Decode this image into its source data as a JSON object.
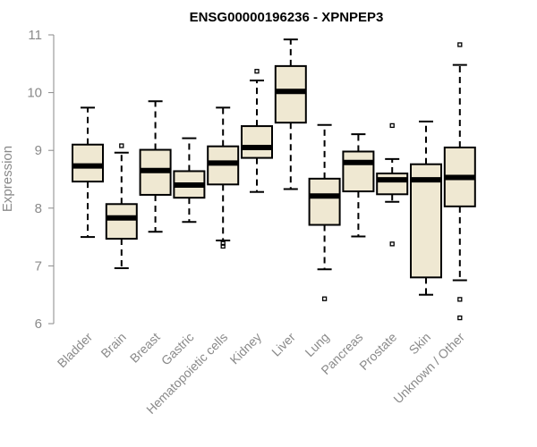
{
  "chart_data": {
    "type": "boxplot",
    "title": "ENSG00000196236 - XPNPEP3",
    "xlabel": "",
    "ylabel": "Expression",
    "ylim": [
      6,
      11
    ],
    "yticks": [
      6,
      7,
      8,
      9,
      10,
      11
    ],
    "box_fill": "#efe8d2",
    "categories": [
      "Bladder",
      "Brain",
      "Breast",
      "Gastric",
      "Hematopoietic cells",
      "Kidney",
      "Liver",
      "Lung",
      "Pancreas",
      "Prostate",
      "Skin",
      "Unknown / Other"
    ],
    "boxes": [
      {
        "whisker_low": 7.5,
        "q1": 8.46,
        "median": 8.73,
        "q3": 9.1,
        "whisker_high": 9.74,
        "outliers": []
      },
      {
        "whisker_low": 6.96,
        "q1": 7.47,
        "median": 7.83,
        "q3": 8.07,
        "whisker_high": 8.96,
        "outliers": [
          9.08
        ]
      },
      {
        "whisker_low": 7.59,
        "q1": 8.23,
        "median": 8.65,
        "q3": 9.01,
        "whisker_high": 9.85,
        "outliers": []
      },
      {
        "whisker_low": 7.76,
        "q1": 8.18,
        "median": 8.4,
        "q3": 8.64,
        "whisker_high": 9.21,
        "outliers": []
      },
      {
        "whisker_low": 7.44,
        "q1": 8.41,
        "median": 8.78,
        "q3": 9.07,
        "whisker_high": 9.74,
        "outliers": [
          7.34,
          7.39
        ]
      },
      {
        "whisker_low": 8.28,
        "q1": 8.87,
        "median": 9.05,
        "q3": 9.42,
        "whisker_high": 10.21,
        "outliers": [
          10.37
        ]
      },
      {
        "whisker_low": 8.33,
        "q1": 9.48,
        "median": 10.02,
        "q3": 10.46,
        "whisker_high": 10.92,
        "outliers": []
      },
      {
        "whisker_low": 6.94,
        "q1": 7.71,
        "median": 8.21,
        "q3": 8.51,
        "whisker_high": 9.44,
        "outliers": [
          6.43
        ]
      },
      {
        "whisker_low": 7.51,
        "q1": 8.29,
        "median": 8.79,
        "q3": 8.98,
        "whisker_high": 9.28,
        "outliers": []
      },
      {
        "whisker_low": 8.11,
        "q1": 8.24,
        "median": 8.49,
        "q3": 8.6,
        "whisker_high": 8.85,
        "outliers": [
          7.38,
          9.43
        ]
      },
      {
        "whisker_low": 6.5,
        "q1": 6.8,
        "median": 8.49,
        "q3": 8.76,
        "whisker_high": 9.5,
        "outliers": []
      },
      {
        "whisker_low": 6.75,
        "q1": 8.03,
        "median": 8.53,
        "q3": 9.05,
        "whisker_high": 10.48,
        "outliers": [
          6.1,
          6.42,
          10.83
        ]
      }
    ]
  }
}
